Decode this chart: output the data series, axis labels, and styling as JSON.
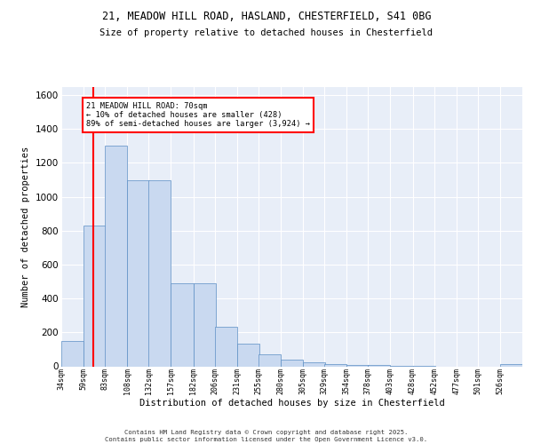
{
  "title_line1": "21, MEADOW HILL ROAD, HASLAND, CHESTERFIELD, S41 0BG",
  "title_line2": "Size of property relative to detached houses in Chesterfield",
  "xlabel": "Distribution of detached houses by size in Chesterfield",
  "ylabel": "Number of detached properties",
  "bar_color": "#c9d9f0",
  "bar_edge_color": "#5b8ec4",
  "background_color": "#e8eef8",
  "grid_color": "#ffffff",
  "red_line_x": 70,
  "annotation_text": "21 MEADOW HILL ROAD: 70sqm\n← 10% of detached houses are smaller (428)\n89% of semi-detached houses are larger (3,924) →",
  "annotation_box_color": "white",
  "annotation_box_edge": "red",
  "footer_text": "Contains HM Land Registry data © Crown copyright and database right 2025.\nContains public sector information licensed under the Open Government Licence v3.0.",
  "bin_edges": [
    34,
    59,
    83,
    108,
    132,
    157,
    182,
    206,
    231,
    255,
    280,
    305,
    329,
    354,
    378,
    403,
    428,
    452,
    477,
    501,
    526
  ],
  "bin_labels": [
    "34sqm",
    "59sqm",
    "83sqm",
    "108sqm",
    "132sqm",
    "157sqm",
    "182sqm",
    "206sqm",
    "231sqm",
    "255sqm",
    "280sqm",
    "305sqm",
    "329sqm",
    "354sqm",
    "378sqm",
    "403sqm",
    "428sqm",
    "452sqm",
    "477sqm",
    "501sqm",
    "526sqm"
  ],
  "counts": [
    150,
    830,
    1300,
    1100,
    1100,
    490,
    490,
    235,
    135,
    70,
    40,
    25,
    15,
    10,
    10,
    5,
    5,
    0,
    0,
    0,
    15
  ],
  "ylim": [
    0,
    1650
  ],
  "yticks": [
    0,
    200,
    400,
    600,
    800,
    1000,
    1200,
    1400,
    1600
  ]
}
